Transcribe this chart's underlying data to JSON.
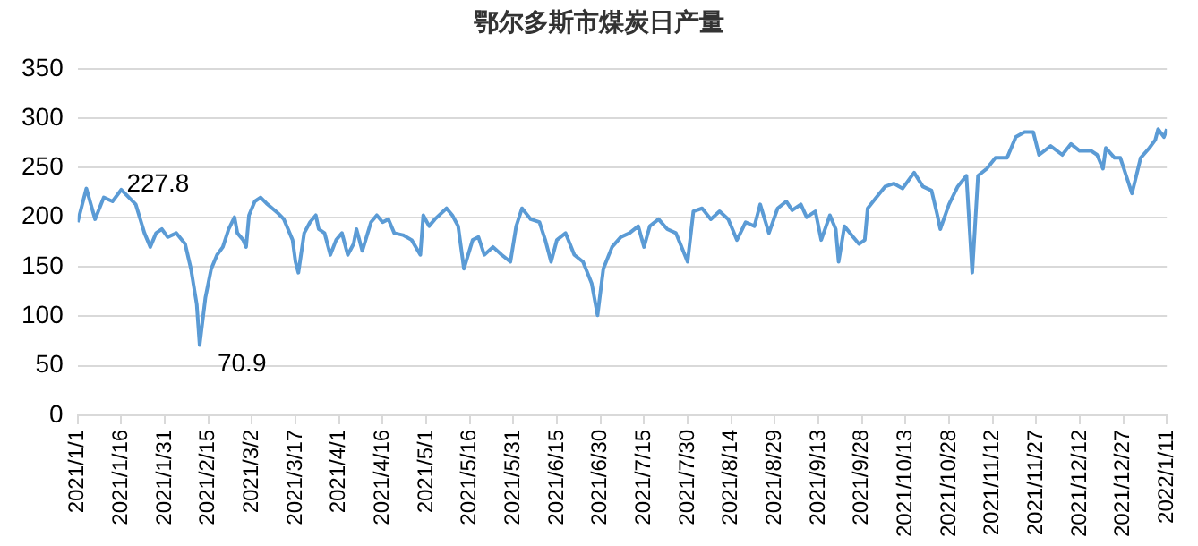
{
  "chart_data": {
    "type": "line",
    "title": "鄂尔多斯市煤炭日产量",
    "x": [
      "2021-01-01",
      "2021-01-04",
      "2021-01-07",
      "2021-01-10",
      "2021-01-13",
      "2021-01-16",
      "2021-01-21",
      "2021-01-24",
      "2021-01-26",
      "2021-01-28",
      "2021-01-30",
      "2021-02-01",
      "2021-02-04",
      "2021-02-07",
      "2021-02-09",
      "2021-02-11",
      "2021-02-12",
      "2021-02-14",
      "2021-02-16",
      "2021-02-18",
      "2021-02-20",
      "2021-02-22",
      "2021-02-24",
      "2021-02-25",
      "2021-02-27",
      "2021-02-28",
      "2021-03-01",
      "2021-03-03",
      "2021-03-05",
      "2021-03-07",
      "2021-03-09",
      "2021-03-11",
      "2021-03-13",
      "2021-03-15",
      "2021-03-16",
      "2021-03-17",
      "2021-03-18",
      "2021-03-20",
      "2021-03-22",
      "2021-03-24",
      "2021-03-25",
      "2021-03-27",
      "2021-03-29",
      "2021-03-31",
      "2021-04-02",
      "2021-04-04",
      "2021-04-06",
      "2021-04-07",
      "2021-04-09",
      "2021-04-12",
      "2021-04-14",
      "2021-04-16",
      "2021-04-18",
      "2021-04-20",
      "2021-04-23",
      "2021-04-26",
      "2021-04-29",
      "2021-04-30",
      "2021-05-02",
      "2021-05-04",
      "2021-05-08",
      "2021-05-10",
      "2021-05-12",
      "2021-05-14",
      "2021-05-17",
      "2021-05-19",
      "2021-05-21",
      "2021-05-24",
      "2021-05-27",
      "2021-05-30",
      "2021-06-01",
      "2021-06-03",
      "2021-06-06",
      "2021-06-09",
      "2021-06-11",
      "2021-06-13",
      "2021-06-15",
      "2021-06-18",
      "2021-06-21",
      "2021-06-24",
      "2021-06-27",
      "2021-06-29",
      "2021-07-01",
      "2021-07-04",
      "2021-07-07",
      "2021-07-10",
      "2021-07-13",
      "2021-07-15",
      "2021-07-17",
      "2021-07-20",
      "2021-07-23",
      "2021-07-26",
      "2021-07-30",
      "2021-08-01",
      "2021-08-04",
      "2021-08-07",
      "2021-08-10",
      "2021-08-13",
      "2021-08-16",
      "2021-08-19",
      "2021-08-22",
      "2021-08-24",
      "2021-08-27",
      "2021-08-30",
      "2021-09-02",
      "2021-09-04",
      "2021-09-07",
      "2021-09-09",
      "2021-09-12",
      "2021-09-14",
      "2021-09-17",
      "2021-09-19",
      "2021-09-20",
      "2021-09-22",
      "2021-09-25",
      "2021-09-27",
      "2021-09-29",
      "2021-09-30",
      "2021-10-03",
      "2021-10-06",
      "2021-10-09",
      "2021-10-12",
      "2021-10-16",
      "2021-10-19",
      "2021-10-22",
      "2021-10-24",
      "2021-10-25",
      "2021-10-28",
      "2021-10-31",
      "2021-11-03",
      "2021-11-05",
      "2021-11-07",
      "2021-11-10",
      "2021-11-13",
      "2021-11-17",
      "2021-11-20",
      "2021-11-23",
      "2021-11-26",
      "2021-11-28",
      "2021-12-02",
      "2021-12-06",
      "2021-12-09",
      "2021-12-12",
      "2021-12-16",
      "2021-12-18",
      "2021-12-20",
      "2021-12-21",
      "2021-12-24",
      "2021-12-26",
      "2021-12-30",
      "2022-01-02",
      "2022-01-05",
      "2022-01-07",
      "2022-01-08",
      "2022-01-10",
      "2022-01-11"
    ],
    "series": [
      {
        "color": "#5b9bd5",
        "values": [
          195,
          229,
          198,
          220,
          216,
          227.8,
          213,
          184,
          170,
          184,
          188,
          180,
          184,
          173,
          148,
          112,
          70.9,
          119,
          148,
          162,
          170,
          188,
          200,
          184,
          177,
          170,
          202,
          216,
          220,
          214,
          209,
          204,
          198,
          184,
          177,
          155,
          144,
          184,
          195,
          202,
          188,
          184,
          162,
          177,
          184,
          162,
          173,
          188,
          166,
          195,
          202,
          195,
          198,
          184,
          182,
          177,
          162,
          202,
          191,
          198,
          209,
          202,
          191,
          148,
          177,
          180,
          162,
          170,
          162,
          155,
          191,
          209,
          198,
          195,
          177,
          155,
          177,
          184,
          162,
          155,
          133,
          101,
          148,
          170,
          180,
          184,
          191,
          170,
          191,
          198,
          188,
          184,
          155,
          206,
          209,
          198,
          206,
          198,
          177,
          195,
          191,
          213,
          184,
          209,
          216,
          207,
          213,
          200,
          206,
          177,
          202,
          188,
          155,
          191,
          180,
          173,
          177,
          209,
          220,
          231,
          234,
          229,
          245,
          231,
          227,
          202,
          188,
          213,
          231,
          242,
          144,
          242,
          249,
          260,
          260,
          281,
          286,
          286,
          263,
          272,
          263,
          274,
          267,
          267,
          263,
          249,
          270,
          260,
          260,
          224,
          260,
          270,
          278,
          289,
          281,
          289
        ]
      }
    ],
    "xlim": [
      "2021-01-01",
      "2022-01-11"
    ],
    "xticks": [
      {
        "value": "2021-01-01",
        "label": "2021/1/1"
      },
      {
        "value": "2021-01-16",
        "label": "2021/1/16"
      },
      {
        "value": "2021-01-31",
        "label": "2021/1/31"
      },
      {
        "value": "2021-02-15",
        "label": "2021/2/15"
      },
      {
        "value": "2021-03-02",
        "label": "2021/3/2"
      },
      {
        "value": "2021-03-17",
        "label": "2021/3/17"
      },
      {
        "value": "2021-04-01",
        "label": "2021/4/1"
      },
      {
        "value": "2021-04-16",
        "label": "2021/4/16"
      },
      {
        "value": "2021-05-01",
        "label": "2021/5/1"
      },
      {
        "value": "2021-05-16",
        "label": "2021/5/16"
      },
      {
        "value": "2021-05-31",
        "label": "2021/5/31"
      },
      {
        "value": "2021-06-15",
        "label": "2021/6/15"
      },
      {
        "value": "2021-06-30",
        "label": "2021/6/30"
      },
      {
        "value": "2021-07-15",
        "label": "2021/7/15"
      },
      {
        "value": "2021-07-30",
        "label": "2021/7/30"
      },
      {
        "value": "2021-08-14",
        "label": "2021/8/14"
      },
      {
        "value": "2021-08-29",
        "label": "2021/8/29"
      },
      {
        "value": "2021-09-13",
        "label": "2021/9/13"
      },
      {
        "value": "2021-09-28",
        "label": "2021/9/28"
      },
      {
        "value": "2021-10-13",
        "label": "2021/10/13"
      },
      {
        "value": "2021-10-28",
        "label": "2021/10/28"
      },
      {
        "value": "2021-11-12",
        "label": "2021/11/12"
      },
      {
        "value": "2021-11-27",
        "label": "2021/11/27"
      },
      {
        "value": "2021-12-12",
        "label": "2021/12/12"
      },
      {
        "value": "2021-12-27",
        "label": "2021/12/27"
      },
      {
        "value": "2022-01-11",
        "label": "2022/1/11"
      }
    ],
    "ylim": [
      0,
      350
    ],
    "yticks": [
      0,
      50,
      100,
      150,
      200,
      250,
      300,
      350
    ],
    "grid": "y",
    "legend": false,
    "marker": "none",
    "line_style": "solid",
    "annotations": [
      {
        "text": "227.8",
        "x": "2021-01-16",
        "y": 227.8
      },
      {
        "text": "70.9",
        "x": "2021-02-12",
        "y": 70.9
      }
    ]
  }
}
